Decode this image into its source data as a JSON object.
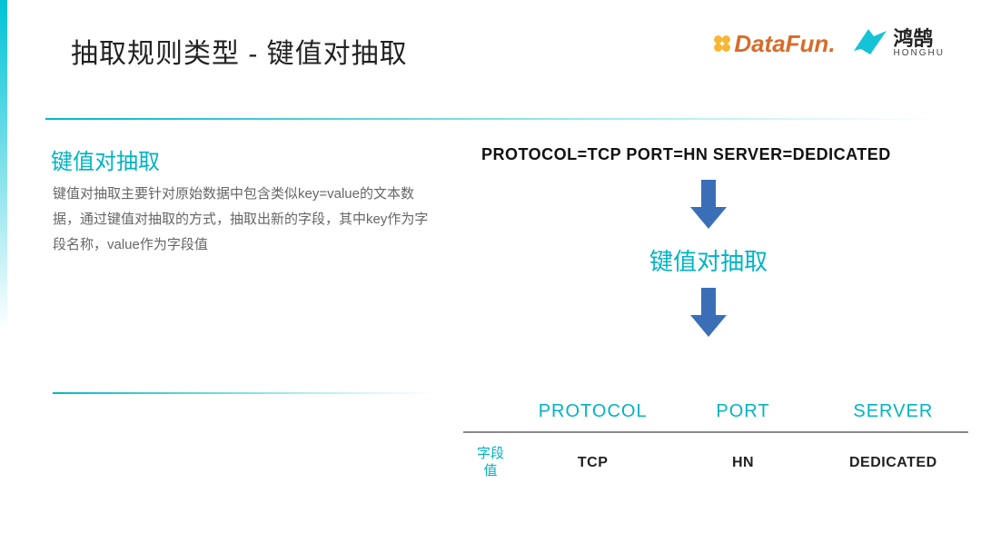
{
  "title": "抽取规则类型 - 键值对抽取",
  "logos": {
    "datafun": "DataFun.",
    "honghu_cn": "鸿鹄",
    "honghu_en": "HONGHU"
  },
  "left": {
    "subhead": "键值对抽取",
    "desc": "键值对抽取主要针对原始数据中包含类似key=value的文本数据，通过键值对抽取的方式，抽取出新的字段，其中key作为字段名称，value作为字段值"
  },
  "flow": {
    "sample": "PROTOCOL=TCP PORT=HN SERVER=DEDICATED",
    "middle_label": "键值对抽取",
    "arrow_color": "#3a6fb7"
  },
  "table": {
    "row_label": "字段值",
    "columns": [
      "PROTOCOL",
      "PORT",
      "SERVER"
    ],
    "values": [
      "TCP",
      "HN",
      "DEDICATED"
    ],
    "header_color": "#00b3c4",
    "border_color": "#8a8a8a",
    "value_color": "#222222"
  },
  "colors": {
    "accent": "#00b3c4",
    "text": "#222222",
    "muted": "#666666",
    "background": "#ffffff"
  }
}
